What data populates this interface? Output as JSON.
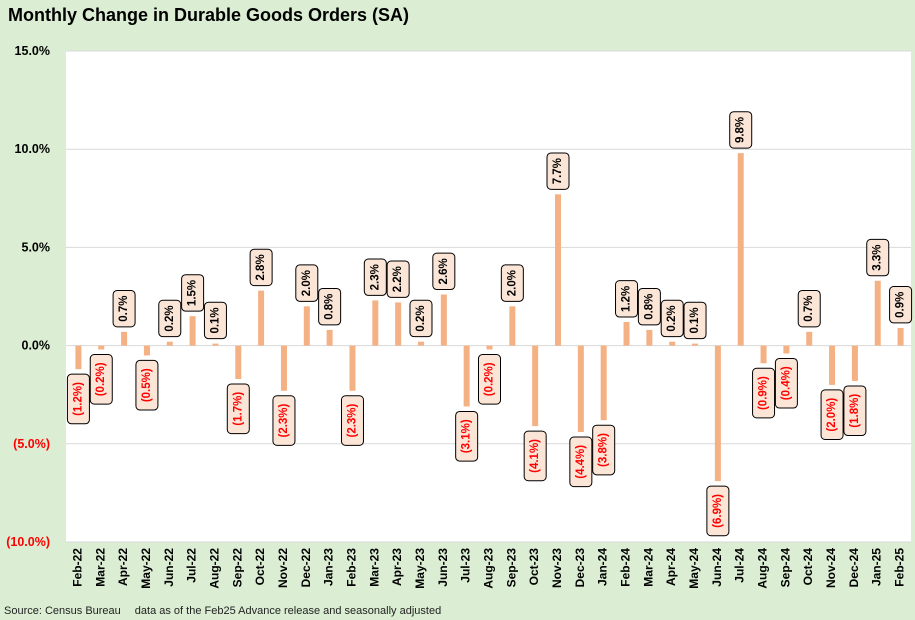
{
  "title": "Monthly Change in Durable Goods Orders (SA)",
  "source": "Source: Census Bureau",
  "note": "data as of the Feb25 Advance release and seasonally adjusted",
  "colors": {
    "bar": "#f4b183",
    "negative_text": "#ff0000",
    "positive_text": "#000000",
    "plot_bg": "#ffffff",
    "outer_bg": "#dbeed3",
    "label_box": "#fbe5d6",
    "grid": "#d9d9d9"
  },
  "chart_data": {
    "type": "bar",
    "title": "Monthly Change in Durable Goods Orders (SA)",
    "xlabel": "",
    "ylabel": "",
    "ylim": [
      -10,
      15
    ],
    "yticks": [
      -10,
      -5,
      0,
      5,
      10,
      15
    ],
    "ytick_labels": [
      "(10.0%)",
      "(5.0%)",
      "0.0%",
      "5.0%",
      "10.0%",
      "15.0%"
    ],
    "grid": "horizontal",
    "categories": [
      "Feb-22",
      "Mar-22",
      "Apr-22",
      "May-22",
      "Jun-22",
      "Jul-22",
      "Aug-22",
      "Sep-22",
      "Oct-22",
      "Nov-22",
      "Dec-22",
      "Jan-23",
      "Feb-23",
      "Mar-23",
      "Apr-23",
      "May-23",
      "Jun-23",
      "Jul-23",
      "Aug-23",
      "Sep-23",
      "Oct-23",
      "Nov-23",
      "Dec-23",
      "Jan-24",
      "Feb-24",
      "Mar-24",
      "Apr-24",
      "May-24",
      "Jun-24",
      "Jul-24",
      "Aug-24",
      "Sep-24",
      "Oct-24",
      "Nov-24",
      "Dec-24",
      "Jan-25",
      "Feb-25"
    ],
    "values": [
      -1.2,
      -0.2,
      0.7,
      -0.5,
      0.2,
      1.5,
      0.1,
      -1.7,
      2.8,
      -2.3,
      2.0,
      0.8,
      -2.3,
      2.3,
      2.2,
      0.2,
      2.6,
      -3.1,
      -0.2,
      2.0,
      -4.1,
      7.7,
      -4.4,
      -3.8,
      1.2,
      0.8,
      0.2,
      0.1,
      -6.9,
      9.8,
      -0.9,
      -0.4,
      0.7,
      -2.0,
      -1.8,
      3.3,
      0.9
    ],
    "data_labels": [
      "(1.2%)",
      "(0.2%)",
      "0.7%",
      "(0.5%)",
      "0.2%",
      "1.5%",
      "0.1%",
      "(1.7%)",
      "2.8%",
      "(2.3%)",
      "2.0%",
      "0.8%",
      "(2.3%)",
      "2.3%",
      "2.2%",
      "0.2%",
      "2.6%",
      "(3.1%)",
      "(0.2%)",
      "2.0%",
      "(4.1%)",
      "7.7%",
      "(4.4%)",
      "(3.8%)",
      "1.2%",
      "0.8%",
      "0.2%",
      "0.1%",
      "(6.9%)",
      "9.8%",
      "(0.9%)",
      "(0.4%)",
      "0.7%",
      "(2.0%)",
      "(1.8%)",
      "3.3%",
      "0.9%"
    ]
  }
}
